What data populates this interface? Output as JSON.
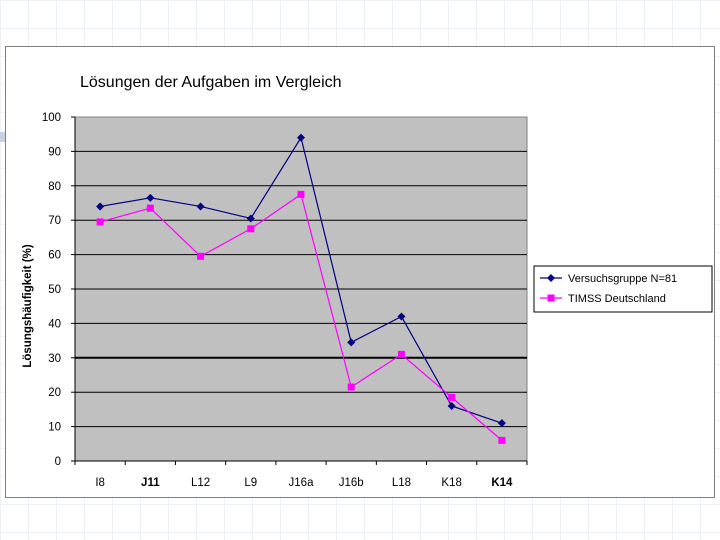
{
  "chart_data": {
    "type": "line",
    "title": "Lösungen der Aufgaben im Vergleich",
    "xlabel": "",
    "ylabel": "Lösungshäufigkeit (%)",
    "ylim": [
      0,
      100
    ],
    "yticks": [
      0,
      10,
      20,
      30,
      40,
      50,
      60,
      70,
      80,
      90,
      100
    ],
    "categories": [
      "I8",
      "J11",
      "L12",
      "L9",
      "J16a",
      "J16b",
      "L18",
      "K18",
      "K14"
    ],
    "bold_categories": [
      "J11",
      "K14"
    ],
    "grid": true,
    "legend_position": "right",
    "plot_background": "#c0c0c0",
    "series": [
      {
        "name": "Versuchsgruppe N=81",
        "color": "#000080",
        "marker": "diamond",
        "values": [
          74,
          76.5,
          74,
          70.5,
          94,
          34.5,
          42,
          16,
          11
        ]
      },
      {
        "name": "TIMSS Deutschland",
        "color": "#ff00ff",
        "marker": "square",
        "values": [
          69.5,
          73.5,
          59.5,
          67.5,
          77.5,
          21.5,
          31,
          18.5,
          6
        ]
      }
    ]
  }
}
